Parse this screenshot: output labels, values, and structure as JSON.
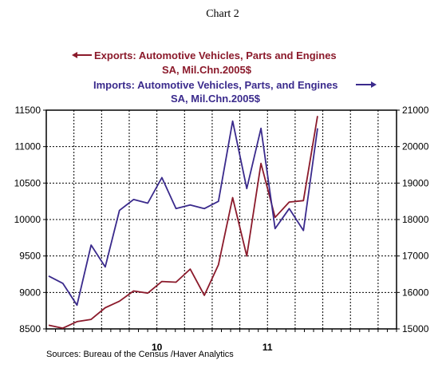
{
  "chart_data": {
    "type": "line",
    "title": "Chart 2",
    "source": "Sources:  Bureau of the Census /Haver Analytics",
    "x_labels": [
      {
        "label": "10",
        "month_index": 12
      },
      {
        "label": "11",
        "month_index": 24
      }
    ],
    "months": 38,
    "left_axis": {
      "min": 8500,
      "max": 11500,
      "ticks": [
        8500,
        9000,
        9500,
        10000,
        10500,
        11000,
        11500
      ]
    },
    "right_axis": {
      "min": 15000,
      "max": 21000,
      "ticks": [
        15000,
        16000,
        17000,
        18000,
        19000,
        20000,
        21000
      ]
    },
    "grid": true,
    "series": [
      {
        "name_line1": "Exports: Automotive Vehicles, Parts and Engines",
        "name_line2": "SA, Mil.Chn.2005$",
        "axis": "left",
        "color": "#8b1a2b",
        "values": [
          8550,
          8510,
          8600,
          8630,
          8790,
          8880,
          9020,
          8990,
          9150,
          9140,
          9320,
          8960,
          9380,
          10300,
          9500,
          10770,
          10030,
          10240,
          10260,
          11420
        ]
      },
      {
        "name_line1": "Imports: Automotive Vehicles, Parts, and Engines",
        "name_line2": "SA, Mil.Chn.2005$",
        "axis": "right",
        "color": "#3a2a8c",
        "values": [
          16450,
          16250,
          15650,
          17300,
          16700,
          18250,
          18550,
          18450,
          19150,
          18300,
          18400,
          18300,
          18500,
          20700,
          18850,
          20500,
          17750,
          18300,
          17700,
          20500
        ]
      }
    ]
  },
  "colors": {
    "exports": "#8b1a2b",
    "imports": "#3a2a8c",
    "axis": "#000000",
    "grid": "#000000"
  }
}
